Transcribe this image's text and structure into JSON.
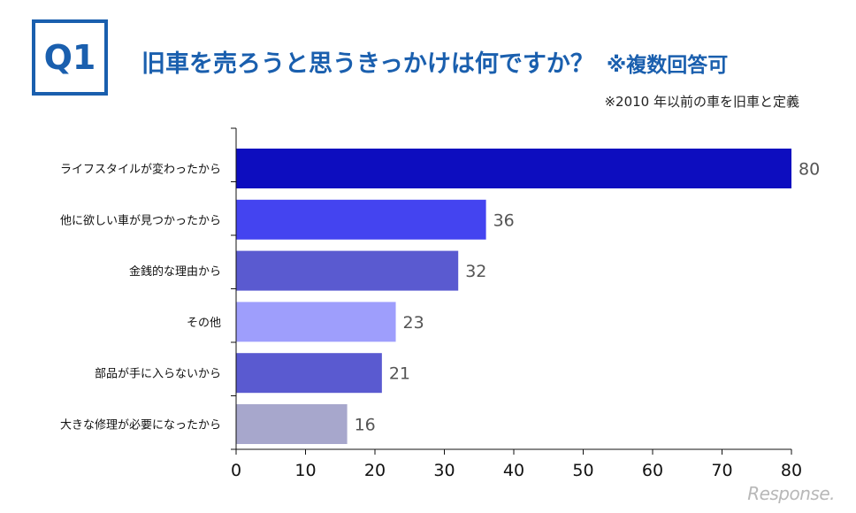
{
  "header": {
    "badge": "Q1",
    "title": "旧車を売ろうと思うきっかけは何ですか？",
    "title_note": "※複数回答可",
    "subnote": "※2010 年以前の車を旧車と定義"
  },
  "watermark": "Response.",
  "colors": {
    "accent": "#1a5fae",
    "bars": [
      "#0d0dbf",
      "#4444f0",
      "#5a5ad0",
      "#9e9efc",
      "#5a5ad0",
      "#a7a7cc"
    ]
  },
  "chart_data": {
    "type": "bar",
    "orientation": "horizontal",
    "categories": [
      "ライフスタイルが変わったから",
      "他に欲しい車が見つかったから",
      "金銭的な理由から",
      "その他",
      "部品が手に入らないから",
      "大きな修理が必要になったから"
    ],
    "values": [
      80,
      36,
      32,
      23,
      21,
      16
    ],
    "xlim": [
      0,
      80
    ],
    "xticks": [
      0,
      10,
      20,
      30,
      40,
      50,
      60,
      70,
      80
    ],
    "grid": false,
    "legend": "none"
  }
}
